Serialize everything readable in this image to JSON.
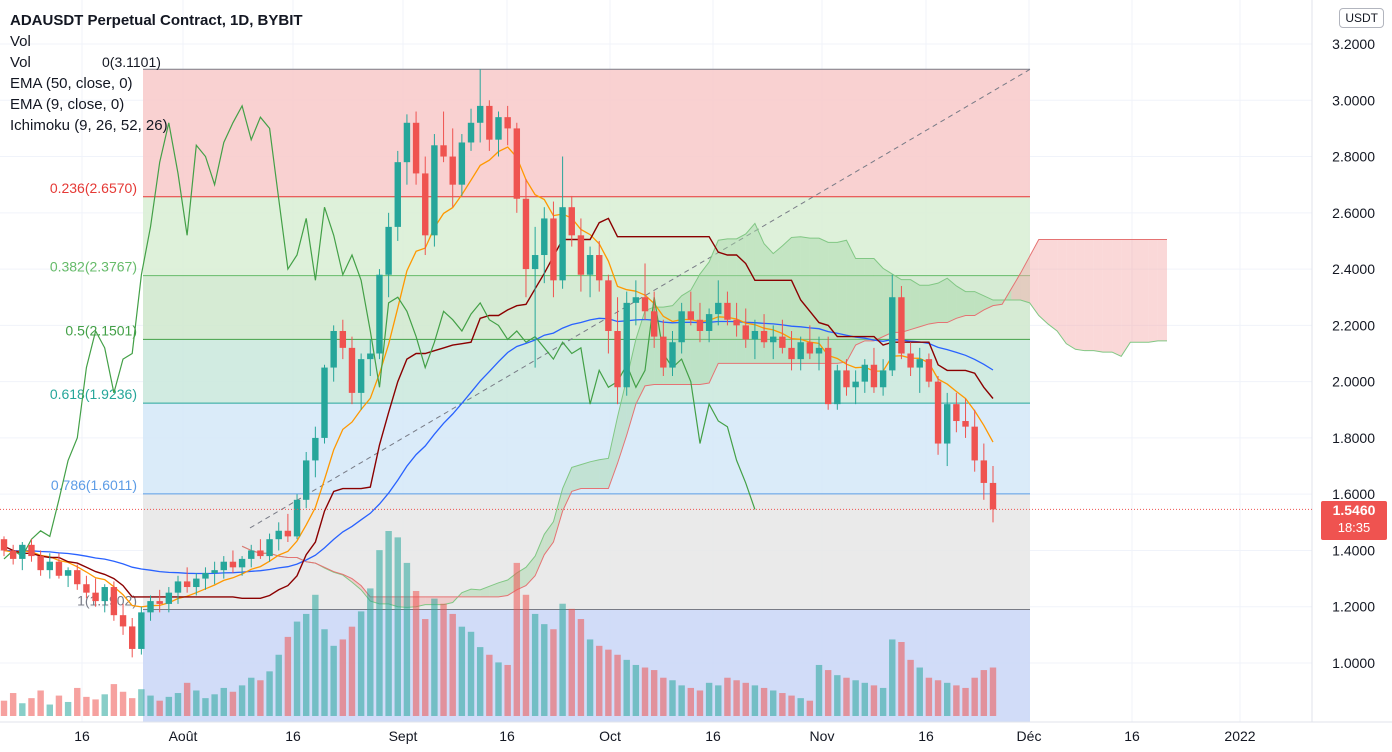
{
  "legend": {
    "title": "ADAUSDT Perpetual Contract, 1D, BYBIT",
    "vol1": "Vol",
    "vol2": "Vol",
    "vol2_value": "0(3.1101)",
    "ema50": "EMA (50, close, 0)",
    "ema9": "EMA (9, close, 0)",
    "ichimoku": "Ichimoku (9, 26, 52, 26)"
  },
  "unit_label": "USDT",
  "last_price": "1.5460",
  "countdown": "18:35",
  "colors": {
    "up": "#26a69a",
    "down": "#ef5350",
    "ema50": "#2962ff",
    "ema9": "#ff9800",
    "kijun": "#8b0000",
    "lagging": "#43a047"
  },
  "chart_data": {
    "type": "candlestick",
    "price_axis": {
      "min": 0.8,
      "max": 3.3,
      "ticks": [
        "3.2000",
        "3.0000",
        "2.8000",
        "2.6000",
        "2.4000",
        "2.2000",
        "2.0000",
        "1.8000",
        "1.6000",
        "1.4000",
        "1.2000",
        "1.0000"
      ]
    },
    "time_axis": {
      "labels": [
        "16",
        "Août",
        "16",
        "Sept",
        "16",
        "Oct",
        "16",
        "Nov",
        "16",
        "Déc",
        "16",
        "2022"
      ]
    },
    "fibonacci": {
      "levels": [
        {
          "label": "0.236(2.6570)",
          "price": 2.657,
          "color": "#e53935"
        },
        {
          "label": "0.382(2.3767)",
          "price": 2.3767,
          "color": "#66bb6a"
        },
        {
          "label": "0.5(2.1501)",
          "price": 2.1501,
          "color": "#43a047"
        },
        {
          "label": "0.618(1.9236)",
          "price": 1.9236,
          "color": "#26a69a"
        },
        {
          "label": "0.786(1.6011)",
          "price": 1.6011,
          "color": "#5c9ce6"
        },
        {
          "label": "1(1.1902)",
          "price": 1.1902,
          "color": "#787b86"
        }
      ],
      "top": 3.1101,
      "bands": [
        "#f8c9c9",
        "#d8efd4",
        "#cfe8cc",
        "#c9e8dc",
        "#d3e8f8",
        "#e6e6e6"
      ]
    },
    "series": [
      {
        "name": "EMA (50, close, 0)"
      },
      {
        "name": "EMA (9, close, 0)"
      },
      {
        "name": "Ichimoku (9, 26, 52, 26)"
      }
    ],
    "candles": [
      [
        1.44,
        1.45,
        1.38,
        1.4
      ],
      [
        1.4,
        1.42,
        1.35,
        1.37
      ],
      [
        1.37,
        1.43,
        1.33,
        1.42
      ],
      [
        1.42,
        1.44,
        1.36,
        1.38
      ],
      [
        1.38,
        1.4,
        1.31,
        1.33
      ],
      [
        1.33,
        1.39,
        1.3,
        1.36
      ],
      [
        1.36,
        1.39,
        1.3,
        1.31
      ],
      [
        1.31,
        1.34,
        1.27,
        1.33
      ],
      [
        1.33,
        1.35,
        1.26,
        1.28
      ],
      [
        1.28,
        1.31,
        1.23,
        1.25
      ],
      [
        1.25,
        1.3,
        1.2,
        1.22
      ],
      [
        1.22,
        1.28,
        1.18,
        1.27
      ],
      [
        1.27,
        1.29,
        1.15,
        1.17
      ],
      [
        1.17,
        1.21,
        1.1,
        1.13
      ],
      [
        1.13,
        1.16,
        1.02,
        1.05
      ],
      [
        1.05,
        1.2,
        1.03,
        1.18
      ],
      [
        1.18,
        1.24,
        1.15,
        1.22
      ],
      [
        1.22,
        1.26,
        1.18,
        1.21
      ],
      [
        1.21,
        1.27,
        1.18,
        1.25
      ],
      [
        1.25,
        1.31,
        1.21,
        1.29
      ],
      [
        1.29,
        1.34,
        1.25,
        1.27
      ],
      [
        1.27,
        1.32,
        1.24,
        1.3
      ],
      [
        1.3,
        1.34,
        1.26,
        1.32
      ],
      [
        1.32,
        1.36,
        1.28,
        1.33
      ],
      [
        1.33,
        1.38,
        1.3,
        1.36
      ],
      [
        1.36,
        1.4,
        1.32,
        1.34
      ],
      [
        1.34,
        1.38,
        1.31,
        1.37
      ],
      [
        1.37,
        1.42,
        1.34,
        1.4
      ],
      [
        1.4,
        1.44,
        1.37,
        1.38
      ],
      [
        1.38,
        1.46,
        1.36,
        1.44
      ],
      [
        1.44,
        1.5,
        1.4,
        1.47
      ],
      [
        1.47,
        1.53,
        1.43,
        1.45
      ],
      [
        1.45,
        1.6,
        1.44,
        1.58
      ],
      [
        1.58,
        1.75,
        1.55,
        1.72
      ],
      [
        1.72,
        1.84,
        1.66,
        1.8
      ],
      [
        1.8,
        2.06,
        1.78,
        2.05
      ],
      [
        2.05,
        2.2,
        2.0,
        2.18
      ],
      [
        2.18,
        2.22,
        2.08,
        2.12
      ],
      [
        2.12,
        2.16,
        1.92,
        1.96
      ],
      [
        1.96,
        2.1,
        1.9,
        2.08
      ],
      [
        2.08,
        2.15,
        2.02,
        2.1
      ],
      [
        2.1,
        2.4,
        2.08,
        2.38
      ],
      [
        2.38,
        2.6,
        2.3,
        2.55
      ],
      [
        2.55,
        2.82,
        2.5,
        2.78
      ],
      [
        2.78,
        2.95,
        2.7,
        2.92
      ],
      [
        2.92,
        2.96,
        2.7,
        2.74
      ],
      [
        2.74,
        2.8,
        2.45,
        2.52
      ],
      [
        2.52,
        2.88,
        2.48,
        2.84
      ],
      [
        2.84,
        2.96,
        2.78,
        2.8
      ],
      [
        2.8,
        2.9,
        2.62,
        2.7
      ],
      [
        2.7,
        2.88,
        2.66,
        2.85
      ],
      [
        2.85,
        2.97,
        2.82,
        2.92
      ],
      [
        2.92,
        3.11,
        2.85,
        2.98
      ],
      [
        2.98,
        3.0,
        2.82,
        2.86
      ],
      [
        2.86,
        2.96,
        2.8,
        2.94
      ],
      [
        2.94,
        2.98,
        2.84,
        2.9
      ],
      [
        2.9,
        2.92,
        2.6,
        2.65
      ],
      [
        2.65,
        2.72,
        2.3,
        2.4
      ],
      [
        2.4,
        2.55,
        2.05,
        2.45
      ],
      [
        2.45,
        2.62,
        2.35,
        2.58
      ],
      [
        2.58,
        2.64,
        2.3,
        2.36
      ],
      [
        2.36,
        2.8,
        2.33,
        2.62
      ],
      [
        2.62,
        2.66,
        2.48,
        2.52
      ],
      [
        2.52,
        2.58,
        2.32,
        2.38
      ],
      [
        2.38,
        2.48,
        2.3,
        2.45
      ],
      [
        2.45,
        2.5,
        2.32,
        2.36
      ],
      [
        2.36,
        2.38,
        2.1,
        2.18
      ],
      [
        2.18,
        2.3,
        1.92,
        1.98
      ],
      [
        1.98,
        2.32,
        1.95,
        2.28
      ],
      [
        2.28,
        2.36,
        2.2,
        2.3
      ],
      [
        2.3,
        2.42,
        2.22,
        2.25
      ],
      [
        2.25,
        2.32,
        2.12,
        2.16
      ],
      [
        2.16,
        2.22,
        2.02,
        2.05
      ],
      [
        2.05,
        2.18,
        2.02,
        2.14
      ],
      [
        2.14,
        2.28,
        2.1,
        2.25
      ],
      [
        2.25,
        2.32,
        2.2,
        2.22
      ],
      [
        2.22,
        2.28,
        2.14,
        2.18
      ],
      [
        2.18,
        2.26,
        2.14,
        2.24
      ],
      [
        2.24,
        2.36,
        2.2,
        2.28
      ],
      [
        2.28,
        2.32,
        2.2,
        2.22
      ],
      [
        2.22,
        2.28,
        2.16,
        2.2
      ],
      [
        2.2,
        2.26,
        2.12,
        2.15
      ],
      [
        2.15,
        2.22,
        2.08,
        2.18
      ],
      [
        2.18,
        2.24,
        2.12,
        2.14
      ],
      [
        2.14,
        2.2,
        2.08,
        2.16
      ],
      [
        2.16,
        2.22,
        2.1,
        2.12
      ],
      [
        2.12,
        2.18,
        2.04,
        2.08
      ],
      [
        2.08,
        2.16,
        2.04,
        2.14
      ],
      [
        2.14,
        2.2,
        2.08,
        2.1
      ],
      [
        2.1,
        2.16,
        2.04,
        2.12
      ],
      [
        2.12,
        2.16,
        1.9,
        1.92
      ],
      [
        1.92,
        2.06,
        1.9,
        2.04
      ],
      [
        2.04,
        2.08,
        1.95,
        1.98
      ],
      [
        1.98,
        2.04,
        1.92,
        2.0
      ],
      [
        2.0,
        2.08,
        1.96,
        2.06
      ],
      [
        2.06,
        2.12,
        1.96,
        1.98
      ],
      [
        1.98,
        2.08,
        1.95,
        2.04
      ],
      [
        2.04,
        2.38,
        2.02,
        2.3
      ],
      [
        2.3,
        2.34,
        2.08,
        2.1
      ],
      [
        2.1,
        2.14,
        2.02,
        2.05
      ],
      [
        2.05,
        2.12,
        1.96,
        2.08
      ],
      [
        2.08,
        2.1,
        1.98,
        2.0
      ],
      [
        2.0,
        2.02,
        1.74,
        1.78
      ],
      [
        1.78,
        1.96,
        1.7,
        1.92
      ],
      [
        1.92,
        1.96,
        1.82,
        1.86
      ],
      [
        1.86,
        1.94,
        1.8,
        1.84
      ],
      [
        1.84,
        1.9,
        1.68,
        1.72
      ],
      [
        1.72,
        1.78,
        1.58,
        1.64
      ],
      [
        1.64,
        1.7,
        1.5,
        1.546
      ]
    ],
    "volumes": [
      12,
      18,
      10,
      14,
      20,
      9,
      16,
      11,
      22,
      15,
      13,
      17,
      25,
      19,
      14,
      21,
      16,
      12,
      15,
      18,
      26,
      20,
      14,
      17,
      22,
      19,
      24,
      30,
      28,
      35,
      48,
      62,
      74,
      80,
      95,
      68,
      55,
      60,
      70,
      82,
      100,
      130,
      145,
      140,
      120,
      98,
      76,
      92,
      88,
      80,
      70,
      66,
      54,
      48,
      42,
      40,
      120,
      95,
      80,
      72,
      68,
      88,
      84,
      76,
      60,
      55,
      52,
      48,
      44,
      40,
      38,
      36,
      30,
      28,
      24,
      22,
      20,
      26,
      24,
      30,
      28,
      26,
      24,
      22,
      20,
      18,
      16,
      14,
      12,
      40,
      36,
      32,
      30,
      28,
      26,
      24,
      22,
      60,
      58,
      44,
      38,
      30,
      28,
      26,
      24,
      22,
      30,
      36,
      38
    ]
  }
}
